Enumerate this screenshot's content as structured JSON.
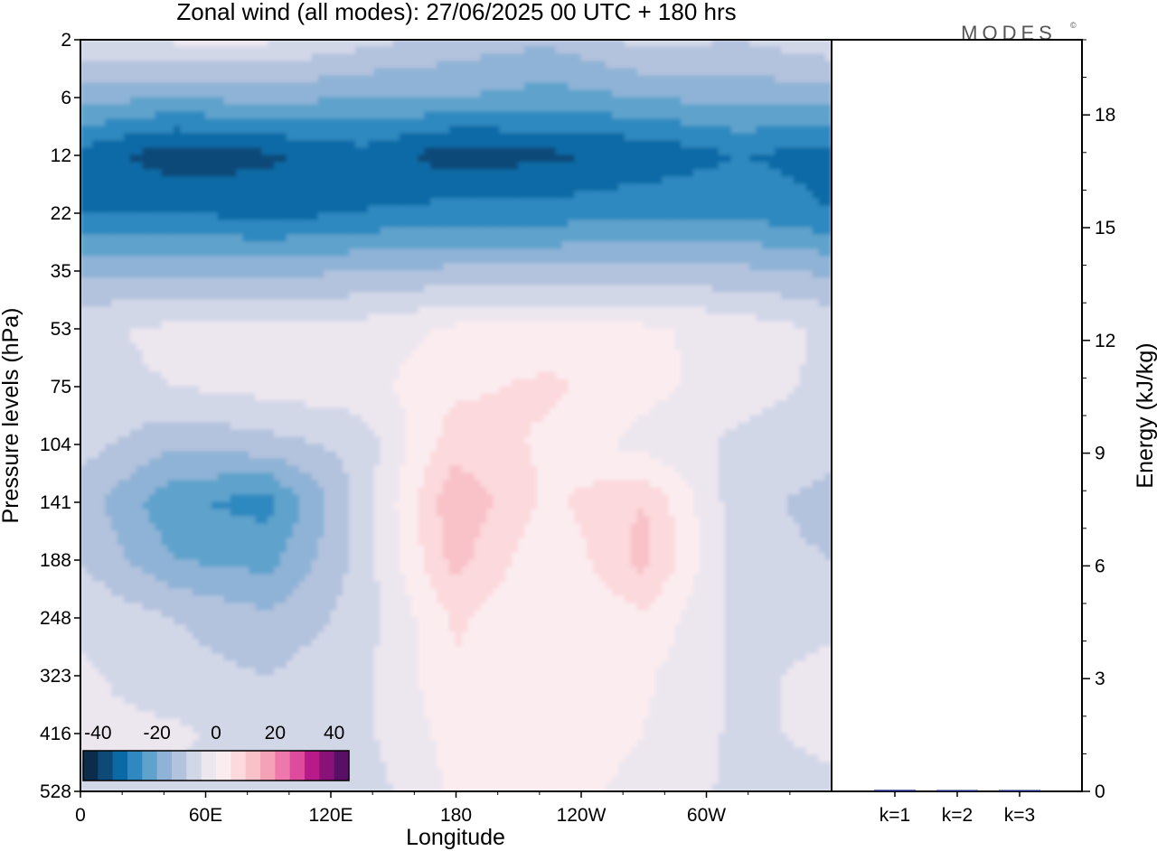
{
  "title": "Zonal wind (all modes):  27/06/2025  00 UTC  + 180 hrs",
  "logo": "MODES",
  "logo_mark": "©",
  "chart_data": [
    {
      "type": "heatmap",
      "xlabel": "Longitude",
      "ylabel": "Pressure levels (hPa)",
      "x_ticks": [
        "0",
        "60E",
        "120E",
        "180",
        "120W",
        "60W"
      ],
      "x_tick_degrees": [
        0,
        60,
        120,
        180,
        240,
        300
      ],
      "xlim": [
        0,
        360
      ],
      "y_ticks": [
        "2",
        "6",
        "12",
        "22",
        "35",
        "53",
        "75",
        "104",
        "141",
        "188",
        "248",
        "323",
        "416",
        "528"
      ],
      "colorbar": {
        "tick_labels": [
          "-40",
          "-20",
          "0",
          "20",
          "40"
        ],
        "tick_values": [
          -40,
          -20,
          0,
          20,
          40
        ],
        "range": [
          -45,
          45
        ],
        "levels": [
          -45,
          -40,
          -35,
          -30,
          -25,
          -20,
          -15,
          -10,
          -5,
          0,
          5,
          10,
          15,
          20,
          25,
          30,
          35,
          40,
          45
        ],
        "colors": [
          "#0c2c4c",
          "#0d4a78",
          "#0b6aa6",
          "#2f89c0",
          "#5fa3cc",
          "#8fb3d6",
          "#b3c2dd",
          "#d2d7e8",
          "#ece6ef",
          "#fbecef",
          "#fcd9dc",
          "#f8c2c8",
          "#f4a3b6",
          "#ee77ab",
          "#de4a9e",
          "#b81a8a",
          "#881277",
          "#5a0f66"
        ]
      },
      "field": {
        "longitudes": [
          0,
          45,
          90,
          135,
          180,
          225,
          270,
          315
        ],
        "rows": [
          {
            "level": "2",
            "values": [
              -6,
              -4,
              -4,
              -8,
              -12,
              -14,
              -8,
              -10
            ]
          },
          {
            "level": "6",
            "values": [
              -18,
              -20,
              -18,
              -20,
              -20,
              -22,
              -20,
              -18
            ]
          },
          {
            "level": "12",
            "values": [
              -32,
              -38,
              -36,
              -32,
              -38,
              -36,
              -34,
              -30
            ]
          },
          {
            "level": "22",
            "values": [
              -30,
              -30,
              -32,
              -30,
              -28,
              -28,
              -26,
              -26
            ]
          },
          {
            "level": "35",
            "values": [
              -16,
              -16,
              -17,
              -15,
              -14,
              -14,
              -14,
              -14
            ]
          },
          {
            "level": "53",
            "values": [
              -6,
              -4,
              -4,
              -3,
              1,
              2,
              1,
              -2
            ]
          },
          {
            "level": "75",
            "values": [
              -6,
              -5,
              -3,
              -2,
              4,
              6,
              2,
              -3
            ]
          },
          {
            "level": "104",
            "values": [
              -8,
              -14,
              -12,
              -8,
              8,
              4,
              -2,
              -6
            ]
          },
          {
            "level": "141",
            "values": [
              -12,
              -24,
              -27,
              -8,
              14,
              4,
              10,
              -8
            ]
          },
          {
            "level": "188",
            "values": [
              -10,
              -20,
              -22,
              -8,
              12,
              0,
              12,
              -8
            ]
          },
          {
            "level": "248",
            "values": [
              -6,
              -10,
              -14,
              -8,
              6,
              0,
              4,
              -6
            ]
          },
          {
            "level": "323",
            "values": [
              -4,
              -8,
              -10,
              -6,
              4,
              4,
              1,
              -6
            ]
          },
          {
            "level": "416",
            "values": [
              -4,
              -4,
              -8,
              -6,
              2,
              4,
              0,
              -6
            ]
          },
          {
            "level": "528",
            "values": [
              -6,
              -6,
              -6,
              -8,
              1,
              3,
              -2,
              -6
            ]
          }
        ]
      }
    },
    {
      "type": "bar",
      "ylabel": "Energy (kJ/kg)",
      "categories": [
        "k=1",
        "k=2",
        "k=3"
      ],
      "values": [
        0.04,
        0.02,
        0.01
      ],
      "ylim": [
        0,
        20
      ],
      "y_ticks": [
        "0",
        "3",
        "6",
        "9",
        "12",
        "15",
        "18"
      ],
      "y_tick_values": [
        0,
        3,
        6,
        9,
        12,
        15,
        18
      ],
      "bar_color": "#1a237e"
    }
  ]
}
